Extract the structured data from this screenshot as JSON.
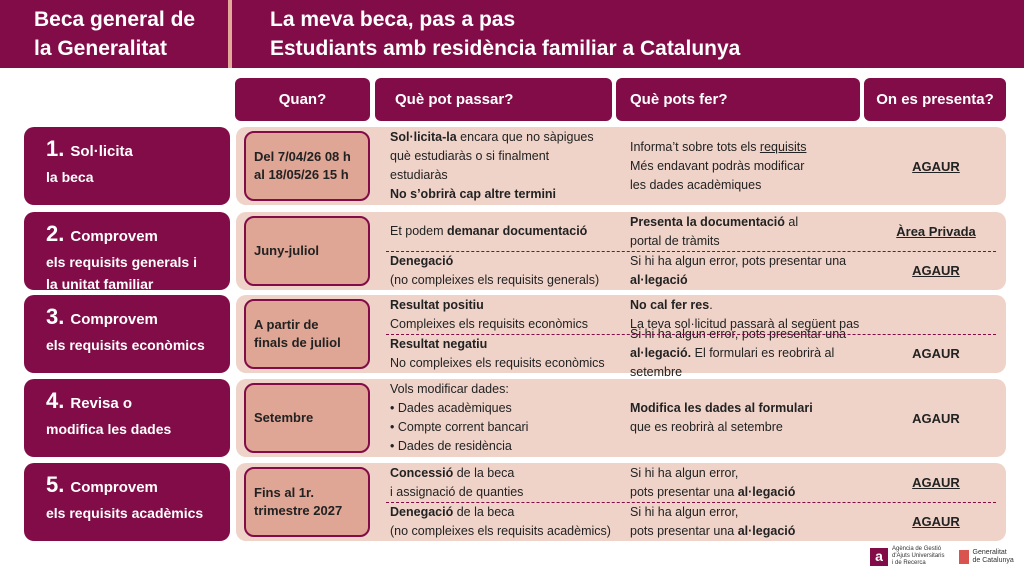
{
  "header": {
    "left_lines": [
      "Beca general de",
      "la Generalitat"
    ],
    "right_lines": [
      "La meva beca, pas a pas",
      "Estudiants amb residència familiar a Catalunya"
    ]
  },
  "columns": [
    "Quan?",
    "Què pot passar?",
    "Què pots fer?",
    "On es presenta?"
  ],
  "rows": [
    {
      "num": "1.",
      "title_first": "Sol·licita",
      "title_rest": [
        "la beca"
      ],
      "quan": [
        "Del 7/04/26 08 h",
        "al 18/05/26 15 h"
      ],
      "subs": [
        {
          "passar": [
            [
              {
                "t": "Sol·licita-la",
                "b": true
              },
              {
                "t": " encara que no sàpigues"
              }
            ],
            [
              {
                "t": "què estudiaràs o si finalment"
              }
            ],
            [
              {
                "t": "estudiaràs"
              }
            ],
            [
              {
                "t": "No s’obrirà cap altre termini",
                "b": true
              }
            ]
          ],
          "fer": [
            [
              {
                "t": "Informa’t sobre tots els "
              },
              {
                "t": "requisits",
                "u": true
              }
            ],
            [
              {
                "t": "Més endavant podràs modificar"
              }
            ],
            [
              {
                "t": "les dades acadèmiques"
              }
            ]
          ],
          "on": "AGAUR",
          "on_link": true
        }
      ]
    },
    {
      "num": "2.",
      "title_first": "Comprovem",
      "title_rest": [
        "els requisits generals i",
        "la unitat familiar"
      ],
      "quan": [
        "Juny-juliol"
      ],
      "subs": [
        {
          "passar": [
            [
              {
                "t": "Et podem "
              },
              {
                "t": "demanar documentació",
                "b": true
              }
            ]
          ],
          "fer": [
            [
              {
                "t": "Presenta la documentació",
                "b": true
              },
              {
                "t": " al"
              }
            ],
            [
              {
                "t": "portal de tràmits"
              }
            ]
          ],
          "on": "Àrea Privada",
          "on_link": true
        },
        {
          "passar": [
            [
              {
                "t": "Denegació",
                "b": true
              }
            ],
            [
              {
                "t": "(no compleixes els requisits generals)"
              }
            ]
          ],
          "fer": [
            [
              {
                "t": "Si hi ha algun error, pots presentar una"
              }
            ],
            [
              {
                "t": "al·legació",
                "b": true
              }
            ]
          ],
          "on": "AGAUR",
          "on_link": true
        }
      ]
    },
    {
      "num": "3.",
      "title_first": "Comprovem",
      "title_rest": [
        "els requisits econòmics"
      ],
      "quan": [
        "A partir de",
        "finals de juliol"
      ],
      "subs": [
        {
          "passar": [
            [
              {
                "t": "Resultat positiu",
                "b": true
              }
            ],
            [
              {
                "t": "Compleixes els requisits econòmics"
              }
            ]
          ],
          "fer": [
            [
              {
                "t": "No cal fer res",
                "b": true
              },
              {
                "t": "."
              }
            ],
            [
              {
                "t": "La teva sol·licitud passarà al següent pas"
              }
            ]
          ],
          "on": "",
          "on_link": false
        },
        {
          "passar": [
            [
              {
                "t": "Resultat negatiu",
                "b": true
              }
            ],
            [
              {
                "t": "No compleixes els requisits econòmics"
              }
            ]
          ],
          "fer": [
            [
              {
                "t": "Si hi ha algun error, pots presentar una"
              }
            ],
            [
              {
                "t": "al·legació.",
                "b": true
              },
              {
                "t": " El formulari es reobrirà al setembre"
              }
            ]
          ],
          "on": "AGAUR",
          "on_link": false
        }
      ]
    },
    {
      "num": "4.",
      "title_first": "Revisa o",
      "title_rest": [
        "modifica les dades"
      ],
      "quan": [
        "Setembre"
      ],
      "subs": [
        {
          "passar": [
            [
              {
                "t": "Vols modificar dades:"
              }
            ],
            [
              {
                "t": "•  Dades acadèmiques"
              }
            ],
            [
              {
                "t": "•  Compte corrent bancari"
              }
            ],
            [
              {
                "t": "•  Dades de residència"
              }
            ]
          ],
          "fer": [
            [
              {
                "t": "Modifica les dades al formulari",
                "b": true
              }
            ],
            [
              {
                "t": "que es reobrirà al setembre"
              }
            ]
          ],
          "on": "AGAUR",
          "on_link": false
        }
      ]
    },
    {
      "num": "5.",
      "title_first": "Comprovem",
      "title_rest": [
        "els requisits acadèmics"
      ],
      "quan": [
        "Fins al 1r.",
        "trimestre 2027"
      ],
      "subs": [
        {
          "passar": [
            [
              {
                "t": "Concessió",
                "b": true
              },
              {
                "t": " de la beca"
              }
            ],
            [
              {
                "t": "i assignació de quanties"
              }
            ]
          ],
          "fer": [
            [
              {
                "t": "Si hi ha algun error,"
              }
            ],
            [
              {
                "t": "pots presentar una "
              },
              {
                "t": "al·legació",
                "b": true
              }
            ]
          ],
          "on": "AGAUR",
          "on_link": true
        },
        {
          "passar": [
            [
              {
                "t": "Denegació",
                "b": true
              },
              {
                "t": " de la beca"
              }
            ],
            [
              {
                "t": "(no compleixes els requisits acadèmics)"
              }
            ]
          ],
          "fer": [
            [
              {
                "t": "Si hi ha algun error,"
              }
            ],
            [
              {
                "t": "pots presentar una "
              },
              {
                "t": "al·legació",
                "b": true
              }
            ]
          ],
          "on": "AGAUR",
          "on_link": true
        }
      ]
    }
  ],
  "footer": {
    "agaur_logo_letter": "a",
    "agaur_text": [
      "Agència de Gestió",
      "d'Ajuts Universitaris",
      "i de Recerca"
    ],
    "gencat_text": [
      "Generalitat",
      "de Catalunya"
    ]
  },
  "colors": {
    "maroon": "#820c47",
    "panel": "#efd3c9",
    "date_box": "#dfa595"
  }
}
